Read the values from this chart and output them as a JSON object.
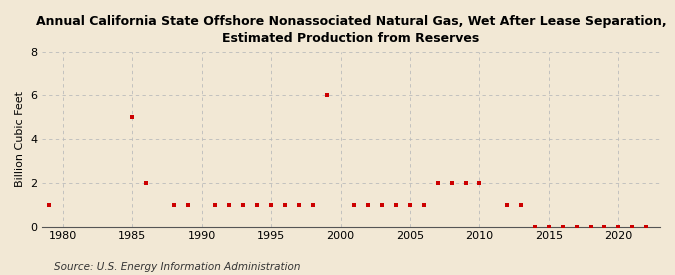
{
  "title": "Annual California State Offshore Nonassociated Natural Gas, Wet After Lease Separation,\nEstimated Production from Reserves",
  "ylabel": "Billion Cubic Feet",
  "source": "Source: U.S. Energy Information Administration",
  "background_color": "#f2e8d5",
  "plot_background_color": "#f2e8d5",
  "marker_color": "#cc0000",
  "grid_color": "#bbbbbb",
  "ylim": [
    0,
    8
  ],
  "yticks": [
    0,
    2,
    4,
    6,
    8
  ],
  "xlim": [
    1978.5,
    2023
  ],
  "xticks": [
    1980,
    1985,
    1990,
    1995,
    2000,
    2005,
    2010,
    2015,
    2020
  ],
  "years": [
    1979,
    1985,
    1986,
    1988,
    1989,
    1991,
    1992,
    1993,
    1994,
    1995,
    1996,
    1997,
    1998,
    1999,
    2001,
    2002,
    2003,
    2004,
    2005,
    2006,
    2007,
    2008,
    2009,
    2010,
    2012,
    2013,
    2014,
    2015,
    2016,
    2017,
    2018,
    2019,
    2020,
    2021,
    2022
  ],
  "values": [
    1,
    5,
    2,
    1,
    1,
    1,
    1,
    1,
    1,
    1,
    1,
    1,
    1,
    6,
    1,
    1,
    1,
    1,
    1,
    1,
    2,
    2,
    2,
    2,
    1,
    1,
    0,
    0,
    0,
    0,
    0,
    0,
    0,
    0,
    0
  ],
  "title_fontsize": 9,
  "axis_fontsize": 8,
  "source_fontsize": 7.5
}
